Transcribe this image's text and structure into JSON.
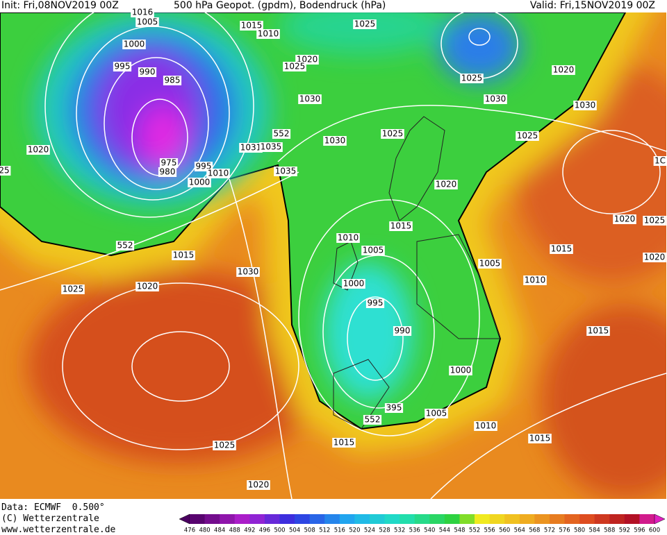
{
  "header": {
    "init": "Init: Fri,08NOV2019 00Z",
    "title": "500 hPa Geopot. (gpdm), Bodendruck (hPa)",
    "valid": "Valid: Fri,15NOV2019 00Z"
  },
  "map": {
    "isobar_labels": [
      "1016",
      "1005",
      "1015",
      "1010",
      "1025",
      "1000",
      "1020",
      "1025",
      "995",
      "990",
      "985",
      "1025",
      "1020",
      "1030",
      "1030",
      "1030",
      "552",
      "1025",
      "1025",
      "1030",
      "1031",
      "1035",
      "1020",
      "25",
      "975",
      "995",
      "980",
      "1010",
      "1035",
      "1000",
      "1020",
      "1020",
      "1025",
      "1015",
      "1010",
      "552",
      "1005",
      "1015",
      "1015",
      "1005",
      "1020",
      "1030",
      "1010",
      "1000",
      "1020",
      "1025",
      "995",
      "990",
      "1015",
      "1000",
      "395",
      "552",
      "1005",
      "1010",
      "1015",
      "1015",
      "1025",
      "1020",
      "1C"
    ]
  },
  "footer": {
    "data_source": "Data: ECMWF  0.500°",
    "copyright": "(C) Wetterzentrale",
    "website": "www.wetterzentrale.de"
  },
  "colorbar": {
    "labels": [
      476,
      480,
      484,
      488,
      492,
      496,
      500,
      504,
      508,
      512,
      516,
      520,
      524,
      528,
      532,
      536,
      540,
      544,
      548,
      552,
      556,
      560,
      564,
      568,
      572,
      576,
      580,
      584,
      588,
      592,
      596,
      600
    ]
  }
}
